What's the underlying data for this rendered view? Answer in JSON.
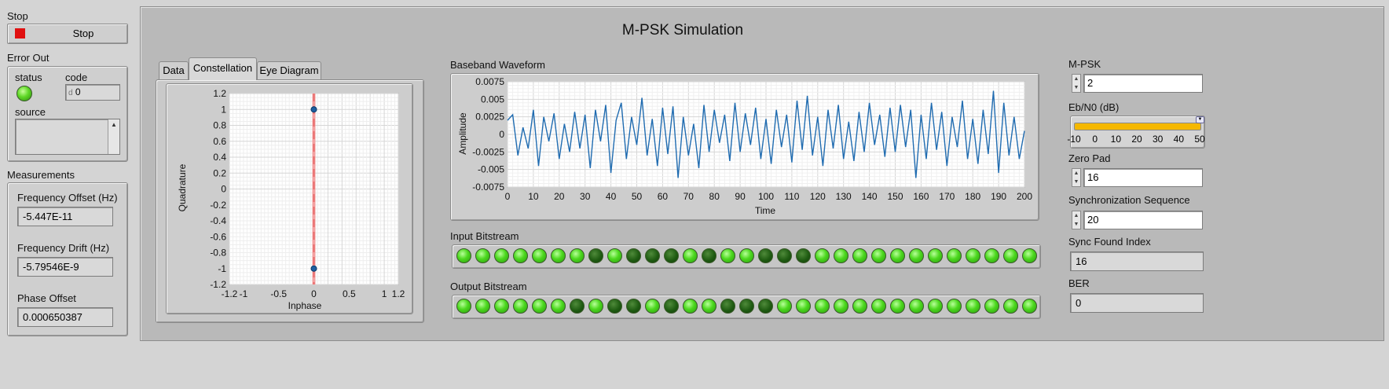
{
  "left": {
    "stop_label": "Stop",
    "stop_button_text": "Stop",
    "error_out_label": "Error Out",
    "status_label": "status",
    "code_label": "code",
    "code_value": "0",
    "code_prefix": "d",
    "source_label": "source",
    "measurements_label": "Measurements",
    "freq_offset_label": "Frequency Offset (Hz)",
    "freq_offset_value": "-5.447E-11",
    "freq_drift_label": "Frequency Drift (Hz)",
    "freq_drift_value": "-5.79546E-9",
    "phase_offset_label": "Phase Offset",
    "phase_offset_value": "0.000650387"
  },
  "main": {
    "title": "M-PSK Simulation",
    "tabs": [
      {
        "label": "Data",
        "active": false
      },
      {
        "label": "Constellation",
        "active": true
      },
      {
        "label": "Eye Diagram",
        "active": false
      }
    ],
    "input_bitstream_label": "Input Bitstream",
    "output_bitstream_label": "Output Bitstream",
    "input_bits": [
      1,
      1,
      1,
      1,
      1,
      1,
      1,
      0,
      1,
      0,
      0,
      0,
      1,
      0,
      1,
      1,
      0,
      0,
      0,
      1,
      1,
      1,
      1,
      1,
      1,
      1,
      1,
      1,
      1,
      1,
      1
    ],
    "output_bits": [
      1,
      1,
      1,
      1,
      1,
      1,
      0,
      1,
      0,
      0,
      1,
      0,
      1,
      1,
      0,
      0,
      0,
      1,
      1,
      1,
      1,
      1,
      1,
      1,
      1,
      1,
      1,
      1,
      1,
      1,
      1
    ]
  },
  "controls": {
    "mpsk_label": "M-PSK",
    "mpsk_value": "2",
    "ebn0_label": "Eb/N0 (dB)",
    "ebn0_ticks": [
      "-10",
      "0",
      "10",
      "20",
      "30",
      "40",
      "50"
    ],
    "ebn0_value": 50,
    "zero_pad_label": "Zero Pad",
    "zero_pad_value": "16",
    "sync_seq_label": "Synchronization Sequence",
    "sync_seq_value": "20",
    "sync_found_label": "Sync Found Index",
    "sync_found_value": "16",
    "ber_label": "BER",
    "ber_value": "0"
  },
  "colors": {
    "accent_trace": "#1f6bb0",
    "slider_fill": "#f5b800",
    "stop_red": "#e01010"
  },
  "chart_data": [
    {
      "type": "scatter",
      "title": "",
      "xlabel": "Inphase",
      "ylabel": "Quadrature",
      "xlim": [
        -1.2,
        1.2
      ],
      "ylim": [
        -1.2,
        1.2
      ],
      "x_ticks": [
        "-1.2",
        "-1",
        "-0.5",
        "0",
        "0.5",
        "1",
        "1.2"
      ],
      "y_ticks": [
        "1.2",
        "1",
        "0.8",
        "0.6",
        "0.4",
        "0.2",
        "0",
        "-0.2",
        "-0.4",
        "-0.6",
        "-0.8",
        "-1",
        "-1.2"
      ],
      "points": [
        {
          "x": 0,
          "y": 1
        },
        {
          "x": 0,
          "y": -1
        }
      ],
      "grid": true
    },
    {
      "type": "line",
      "title": "Baseband Waveform",
      "xlabel": "Time",
      "ylabel": "Amplitude",
      "xlim": [
        0,
        200
      ],
      "ylim": [
        -0.0075,
        0.0075
      ],
      "x_ticks": [
        "0",
        "10",
        "20",
        "30",
        "40",
        "50",
        "60",
        "70",
        "80",
        "90",
        "100",
        "110",
        "120",
        "130",
        "140",
        "150",
        "160",
        "170",
        "180",
        "190",
        "200"
      ],
      "y_ticks": [
        "0.0075",
        "0.005",
        "0.0025",
        "0",
        "-0.0025",
        "-0.005",
        "-0.0075"
      ],
      "series": [
        {
          "x": [
            0,
            2,
            4,
            6,
            8,
            10,
            12,
            14,
            16,
            18,
            20,
            22,
            24,
            26,
            28,
            30,
            32,
            34,
            36,
            38,
            40,
            42,
            44,
            46,
            48,
            50,
            52,
            54,
            56,
            58,
            60,
            62,
            64,
            66,
            68,
            70,
            72,
            74,
            76,
            78,
            80,
            82,
            84,
            86,
            88,
            90,
            92,
            94,
            96,
            98,
            100,
            102,
            104,
            106,
            108,
            110,
            112,
            114,
            116,
            118,
            120,
            122,
            124,
            126,
            128,
            130,
            132,
            134,
            136,
            138,
            140,
            142,
            144,
            146,
            148,
            150,
            152,
            154,
            156,
            158,
            160,
            162,
            164,
            166,
            168,
            170,
            172,
            174,
            176,
            178,
            180,
            182,
            184,
            186,
            188,
            190,
            192,
            194,
            196,
            198,
            200
          ],
          "values": [
            0.002,
            0.0028,
            -0.003,
            0.001,
            -0.002,
            0.0035,
            -0.0045,
            0.0025,
            -0.001,
            0.003,
            -0.0035,
            0.0015,
            -0.0025,
            0.0032,
            -0.002,
            0.0028,
            -0.0048,
            0.0035,
            -0.001,
            0.0042,
            -0.0055,
            0.002,
            0.0045,
            -0.0035,
            0.0025,
            -0.0015,
            0.0052,
            -0.003,
            0.0022,
            -0.0045,
            0.0038,
            -0.0028,
            0.004,
            -0.0062,
            0.0025,
            -0.003,
            0.0015,
            -0.0048,
            0.0042,
            -0.0025,
            0.0035,
            -0.0012,
            0.0028,
            -0.0038,
            0.0045,
            -0.0025,
            0.003,
            -0.0015,
            0.0038,
            -0.0035,
            0.0022,
            -0.0042,
            0.0035,
            -0.0018,
            0.0028,
            -0.004,
            0.0048,
            -0.0022,
            0.0055,
            -0.003,
            0.0025,
            -0.0045,
            0.0035,
            -0.002,
            0.0042,
            -0.0035,
            0.0018,
            -0.0038,
            0.0032,
            -0.0025,
            0.0045,
            -0.0015,
            0.0028,
            -0.0032,
            0.0038,
            -0.0025,
            0.0042,
            -0.0018,
            0.0035,
            -0.0062,
            0.0028,
            -0.0035,
            0.0045,
            -0.0022,
            0.0032,
            -0.0045,
            0.0025,
            -0.0018,
            0.0048,
            -0.0035,
            0.0022,
            -0.0042,
            0.0035,
            -0.0028,
            0.0062,
            -0.0055,
            0.0045,
            -0.003,
            0.0025,
            -0.0035,
            0.0005
          ]
        }
      ],
      "grid": true
    }
  ]
}
